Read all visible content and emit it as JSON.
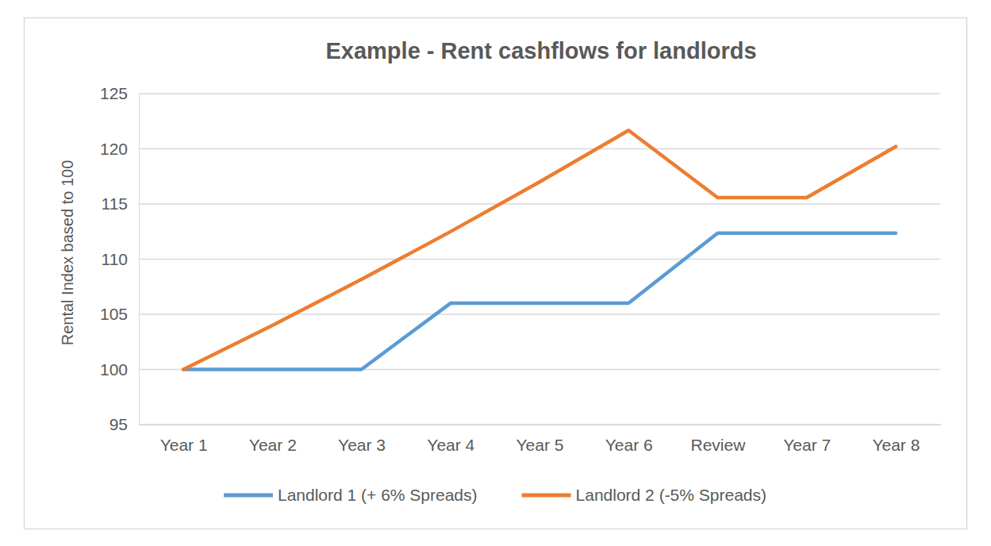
{
  "chart_data": {
    "type": "line",
    "title": "Example - Rent cashflows for landlords",
    "y_label": "Rental Index based to 100",
    "categories": [
      "Year 1",
      "Year 2",
      "Year 3",
      "Year 4",
      "Year 5",
      "Year 6",
      "Review",
      "Year 7",
      "Year 8"
    ],
    "series": [
      {
        "name": "Landlord 1 (+ 6% Spreads)",
        "color": "#5b9bd5",
        "values": [
          100,
          100,
          100,
          106,
          106,
          106,
          112.36,
          112.36,
          112.36
        ]
      },
      {
        "name": "Landlord 2 (-5% Spreads)",
        "color": "#ed7d31",
        "values": [
          100,
          104,
          108.16,
          112.49,
          116.99,
          121.67,
          115.58,
          115.58,
          120.2
        ]
      }
    ],
    "ylim": [
      95,
      125
    ],
    "yticks": [
      95,
      100,
      105,
      110,
      115,
      120,
      125
    ],
    "grid": true,
    "legend": "bottom"
  }
}
